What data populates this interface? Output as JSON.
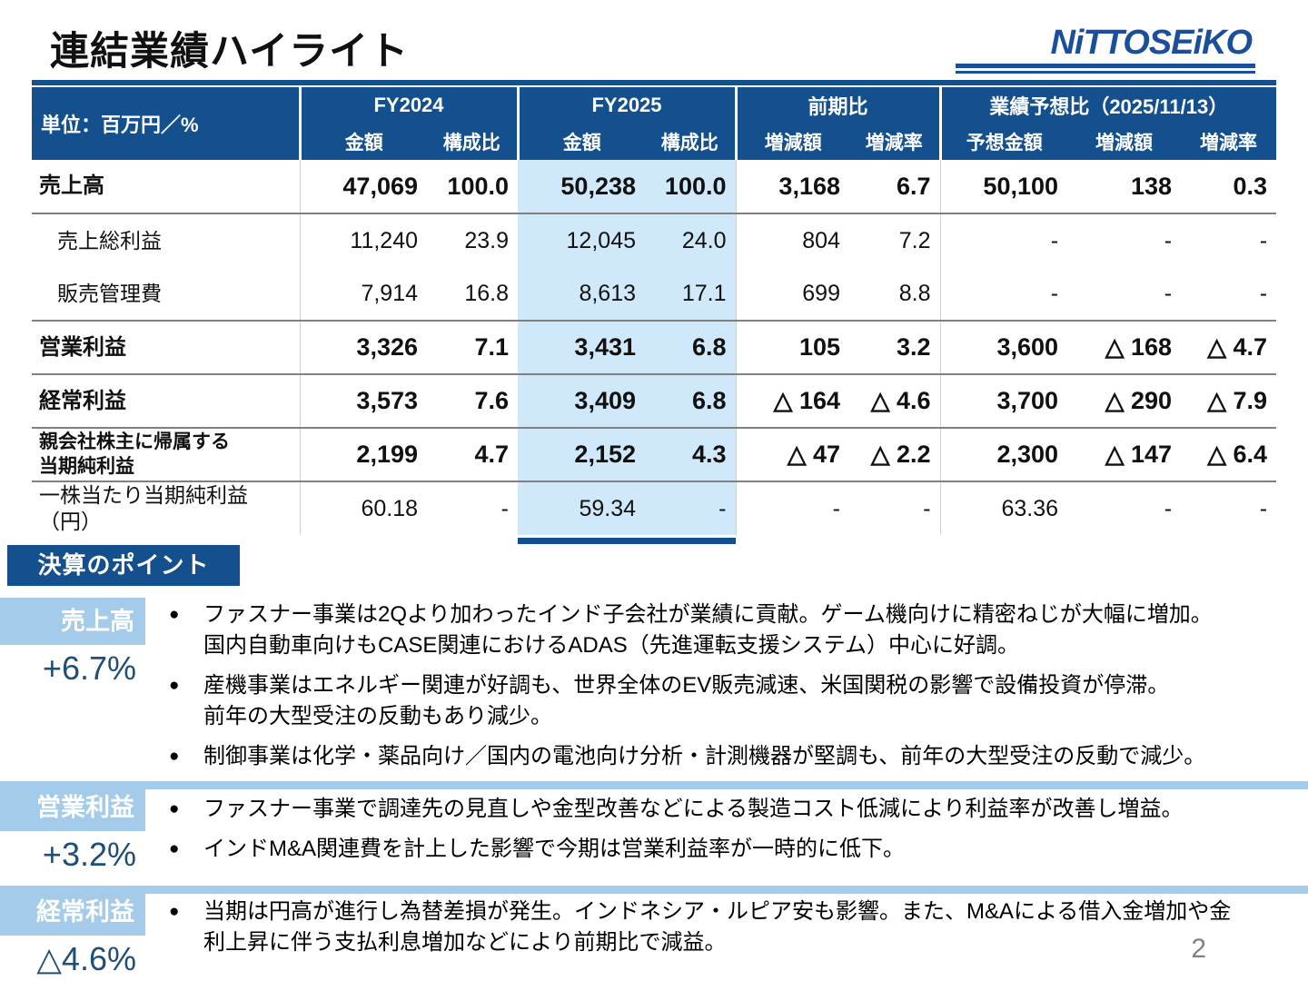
{
  "page": {
    "title": "連結業績ハイライト",
    "page_number": "2"
  },
  "logo": {
    "text": "NiTTOSEiKO"
  },
  "colors": {
    "navy": "#14508E",
    "logo_blue": "#1B4F9C",
    "fy2025_highlight": "#CFE9FA",
    "section_blue": "#A4CBE9",
    "accent_text": "#1F4E79"
  },
  "table": {
    "unit_label": "単位：百万円／%",
    "col_groups": [
      {
        "label": "FY2024",
        "cols": [
          "金額",
          "構成比"
        ]
      },
      {
        "label": "FY2025",
        "cols": [
          "金額",
          "構成比"
        ]
      },
      {
        "label": "前期比",
        "cols": [
          "増減額",
          "増減率"
        ]
      },
      {
        "label": "業績予想比（2025/11/13）",
        "cols": [
          "予想金額",
          "増減額",
          "増減率"
        ]
      }
    ],
    "col_keys": [
      "fy2024-amount",
      "fy2024-ratio",
      "fy2025-amount",
      "fy2025-ratio",
      "yoy-diff",
      "yoy-rate",
      "forecast-amount",
      "forecast-diff",
      "forecast-rate"
    ],
    "rows": [
      {
        "label": "売上高",
        "bold": true,
        "indent": false,
        "rule": true,
        "small": false,
        "values": [
          "47,069",
          "100.0",
          "50,238",
          "100.0",
          "3,168",
          "6.7",
          "50,100",
          "138",
          "0.3"
        ]
      },
      {
        "label": "売上総利益",
        "bold": false,
        "indent": true,
        "rule": false,
        "small": false,
        "values": [
          "11,240",
          "23.9",
          "12,045",
          "24.0",
          "804",
          "7.2",
          "-",
          "-",
          "-"
        ]
      },
      {
        "label": "販売管理費",
        "bold": false,
        "indent": true,
        "rule": true,
        "small": false,
        "values": [
          "7,914",
          "16.8",
          "8,613",
          "17.1",
          "699",
          "8.8",
          "-",
          "-",
          "-"
        ]
      },
      {
        "label": "営業利益",
        "bold": true,
        "indent": false,
        "rule": true,
        "small": false,
        "values": [
          "3,326",
          "7.1",
          "3,431",
          "6.8",
          "105",
          "3.2",
          "3,600",
          "△ 168",
          "△ 4.7"
        ]
      },
      {
        "label": "経常利益",
        "bold": true,
        "indent": false,
        "rule": true,
        "small": false,
        "values": [
          "3,573",
          "7.6",
          "3,409",
          "6.8",
          "△ 164",
          "△ 4.6",
          "3,700",
          "△ 290",
          "△ 7.9"
        ]
      },
      {
        "label": "親会社株主に帰属する\n当期純利益",
        "bold": true,
        "indent": false,
        "rule": true,
        "small": true,
        "values": [
          "2,199",
          "4.7",
          "2,152",
          "4.3",
          "△ 47",
          "△ 2.2",
          "2,300",
          "△ 147",
          "△ 6.4"
        ]
      },
      {
        "label": "一株当たり当期純利益（円）",
        "bold": false,
        "indent": false,
        "rule": false,
        "small": false,
        "values": [
          "60.18",
          "-",
          "59.34",
          "-",
          "-",
          "-",
          "63.36",
          "-",
          "-"
        ]
      }
    ]
  },
  "points": {
    "heading": "決算のポイント",
    "sections": [
      {
        "label": "売上高",
        "change": "+6.7%",
        "divider": false,
        "bullets": [
          "ファスナー事業は2Qより加わったインド子会社が業績に貢献。ゲーム機向けに精密ねじが大幅に増加。\n国内自動車向けもCASE関連におけるADAS（先進運転支援システム）中心に好調。",
          "産機事業はエネルギー関連が好調も、世界全体のEV販売減速、米国関税の影響で設備投資が停滞。\n前年の大型受注の反動もあり減少。",
          "制御事業は化学・薬品向け／国内の電池向け分析・計測機器が堅調も、前年の大型受注の反動で減少。"
        ]
      },
      {
        "label": "営業利益",
        "change": "+3.2%",
        "divider": true,
        "bullets": [
          "ファスナー事業で調達先の見直しや金型改善などによる製造コスト低減により利益率が改善し増益。",
          "インドM&A関連費を計上した影響で今期は営業利益率が一時的に低下。"
        ]
      },
      {
        "label": "経常利益",
        "change": "△4.6%",
        "divider": true,
        "bullets": [
          "当期は円高が進行し為替差損が発生。インドネシア・ルピア安も影響。また、M&Aによる借入金増加や金\n利上昇に伴う支払利息増加などにより前期比で減益。"
        ]
      }
    ]
  }
}
